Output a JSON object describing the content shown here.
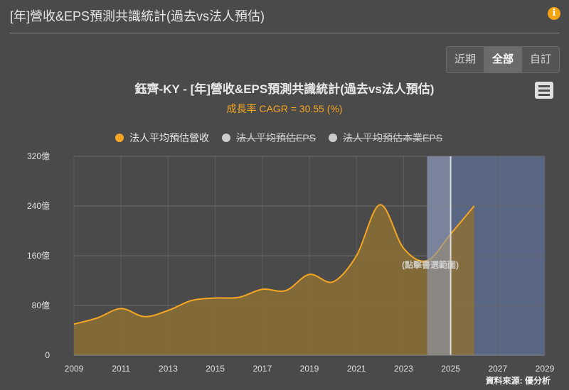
{
  "header": {
    "title": "[年]營收&EPS預測共識統計(過去vs法人預估)",
    "info_icon": "info-icon"
  },
  "range_buttons": [
    {
      "label": "近期",
      "active": false
    },
    {
      "label": "全部",
      "active": true
    },
    {
      "label": "自訂",
      "active": false
    }
  ],
  "chart": {
    "title": "鈺齊-KY - [年]營收&EPS預測共識統計(過去vs法人預估)",
    "subtitle": "成長率 CAGR = 30.55 (%)",
    "menu_icon": "hamburger-menu-icon",
    "legend": [
      {
        "label": "法人平均預估營收",
        "color": "#f5a623",
        "enabled": true
      },
      {
        "label": "法人平均預估EPS",
        "color": "#cccccc",
        "enabled": false
      },
      {
        "label": "法人平均預估本業EPS",
        "color": "#cccccc",
        "enabled": false
      }
    ],
    "selection_hint": "(點擊書選範圍)",
    "source": "資料來源: 優分析"
  },
  "chart_data": {
    "type": "area",
    "x": [
      2009,
      2010,
      2011,
      2012,
      2013,
      2014,
      2015,
      2016,
      2017,
      2018,
      2019,
      2020,
      2021,
      2022,
      2023,
      2024,
      2025,
      2026
    ],
    "series": [
      {
        "name": "法人平均預估營收",
        "values": [
          50,
          60,
          75,
          62,
          72,
          88,
          92,
          93,
          106,
          104,
          130,
          118,
          160,
          242,
          172,
          152,
          195,
          240
        ]
      }
    ],
    "y_ticks": [
      "0",
      "80億",
      "160億",
      "240億",
      "320億"
    ],
    "x_ticks": [
      "2009",
      "2011",
      "2013",
      "2015",
      "2017",
      "2019",
      "2021",
      "2023",
      "2025",
      "2027",
      "2029"
    ],
    "xlim": [
      2009,
      2029
    ],
    "ylim": [
      0,
      320
    ],
    "forecast_band": {
      "from": 2024,
      "to": 2029,
      "color": "#5a6784"
    },
    "selection_band": {
      "from": 2024,
      "to": 2025,
      "color": "#8e97ab"
    },
    "line_color": "#f5a623",
    "fill_color": "#8c6f35",
    "grid": true
  }
}
